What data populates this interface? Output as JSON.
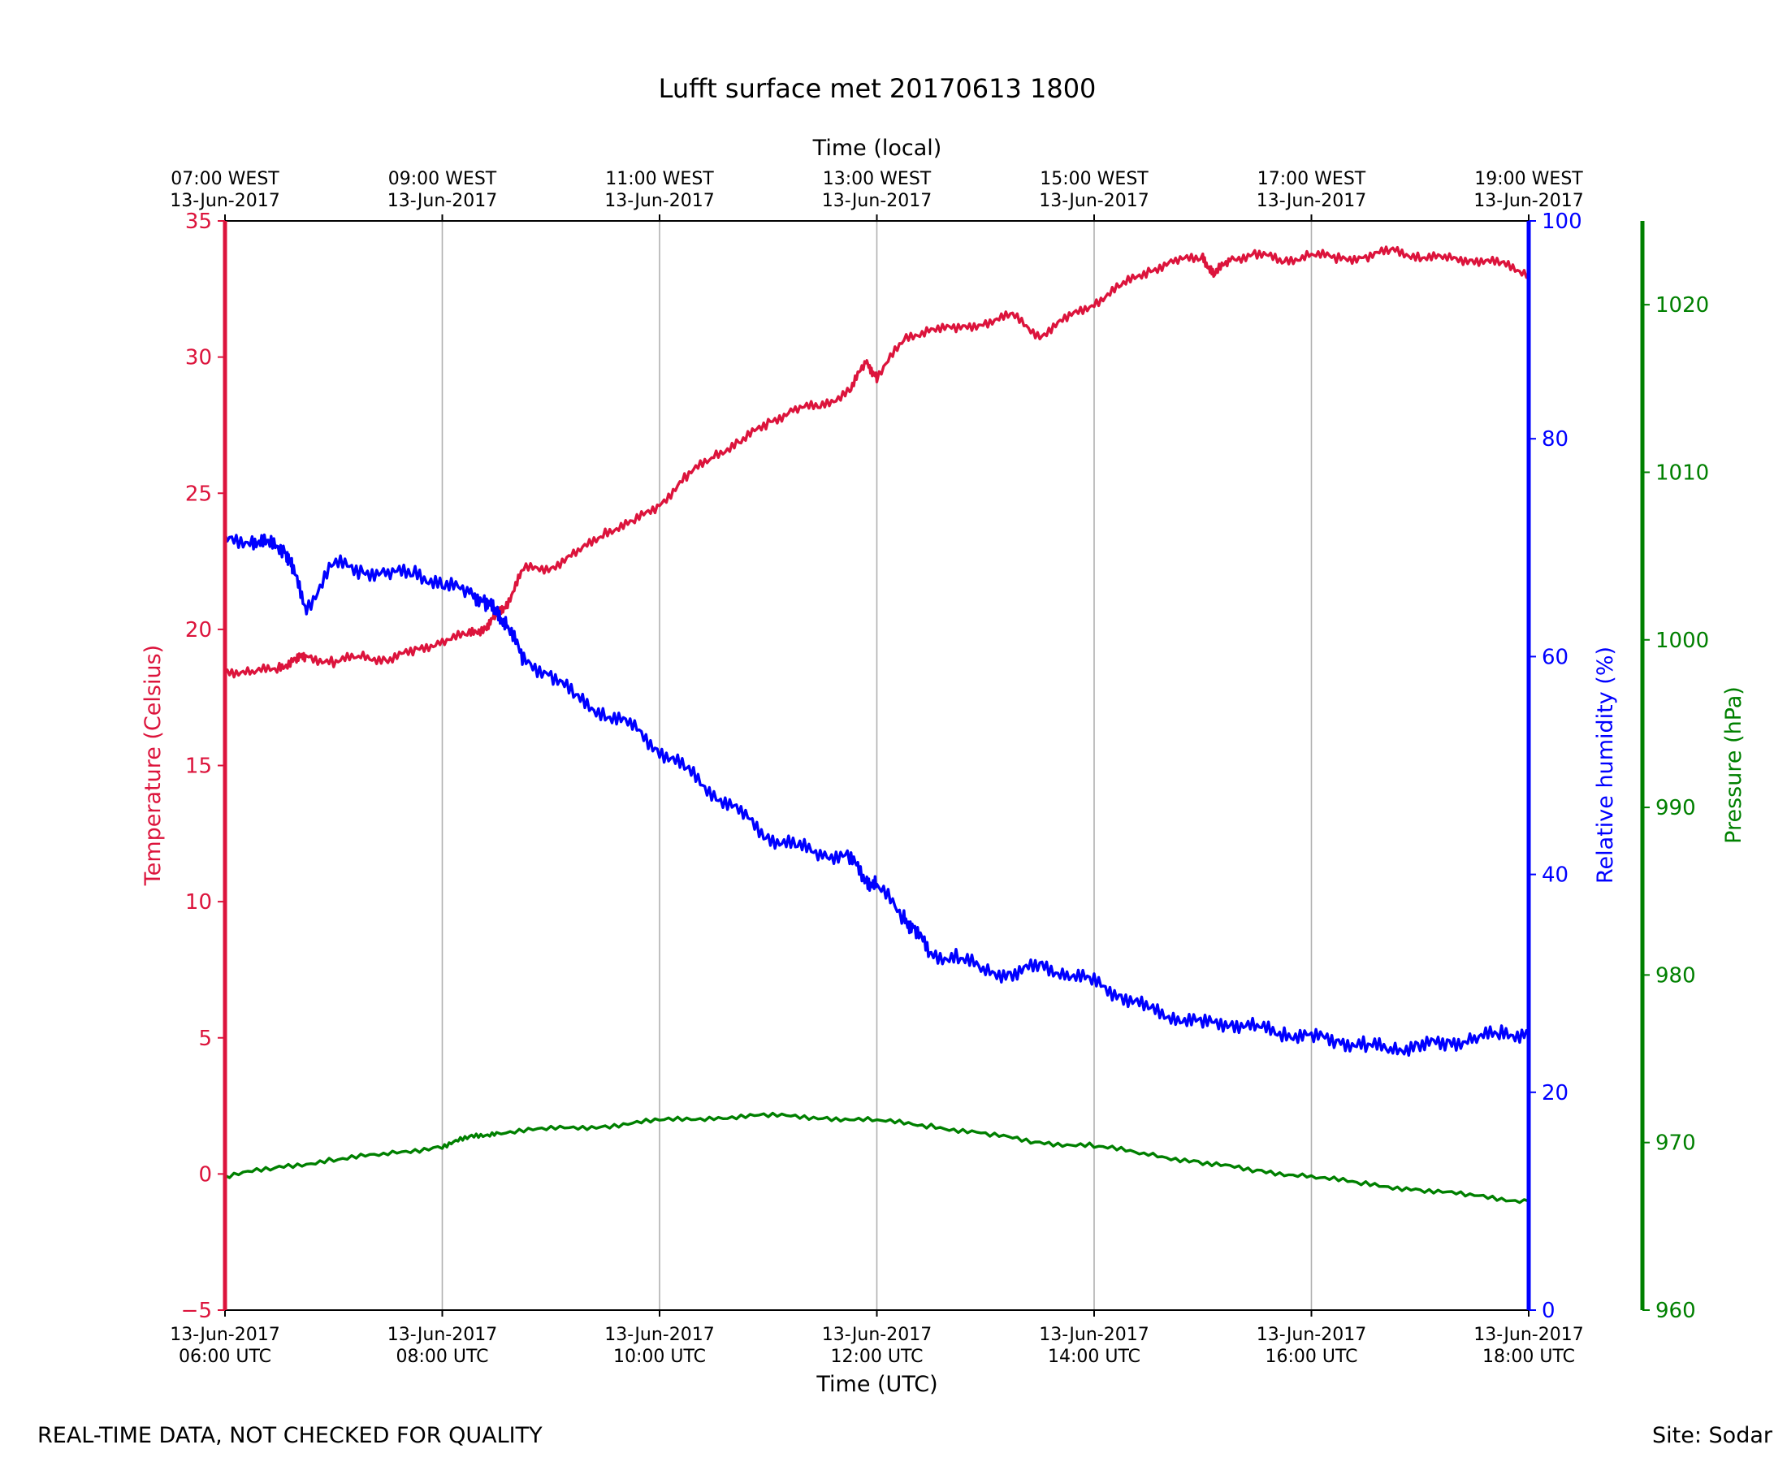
{
  "chart_data": {
    "type": "line",
    "title": "Lufft surface met 20170613 1800",
    "xlabel": "Time (UTC)",
    "xlabel_top": "Time (local)",
    "x_range_hours_utc": [
      6,
      18
    ],
    "x_ticks_bottom": [
      {
        "hour": 6,
        "line1": "13-Jun-2017",
        "line2": "06:00 UTC"
      },
      {
        "hour": 8,
        "line1": "13-Jun-2017",
        "line2": "08:00 UTC"
      },
      {
        "hour": 10,
        "line1": "13-Jun-2017",
        "line2": "10:00 UTC"
      },
      {
        "hour": 12,
        "line1": "13-Jun-2017",
        "line2": "12:00 UTC"
      },
      {
        "hour": 14,
        "line1": "13-Jun-2017",
        "line2": "14:00 UTC"
      },
      {
        "hour": 16,
        "line1": "13-Jun-2017",
        "line2": "16:00 UTC"
      },
      {
        "hour": 18,
        "line1": "13-Jun-2017",
        "line2": "18:00 UTC"
      }
    ],
    "x_ticks_top": [
      {
        "hour": 6,
        "line1": "07:00 WEST",
        "line2": "13-Jun-2017"
      },
      {
        "hour": 8,
        "line1": "09:00 WEST",
        "line2": "13-Jun-2017"
      },
      {
        "hour": 10,
        "line1": "11:00 WEST",
        "line2": "13-Jun-2017"
      },
      {
        "hour": 12,
        "line1": "13:00 WEST",
        "line2": "13-Jun-2017"
      },
      {
        "hour": 14,
        "line1": "15:00 WEST",
        "line2": "13-Jun-2017"
      },
      {
        "hour": 16,
        "line1": "17:00 WEST",
        "line2": "13-Jun-2017"
      },
      {
        "hour": 18,
        "line1": "19:00 WEST",
        "line2": "13-Jun-2017"
      }
    ],
    "grid": "vertical",
    "axes": {
      "temperature": {
        "label": "Temperature (Celsius)",
        "range": [
          -5,
          35
        ],
        "ticks": [
          -5,
          0,
          5,
          10,
          15,
          20,
          25,
          30,
          35
        ],
        "tick_labels": [
          "−5",
          "0",
          "5",
          "10",
          "15",
          "20",
          "25",
          "30",
          "35"
        ],
        "color": "#dc143c",
        "side": "left"
      },
      "humidity": {
        "label": "Relative humidity (%)",
        "range": [
          0,
          100
        ],
        "ticks": [
          0,
          20,
          40,
          60,
          80,
          100
        ],
        "tick_labels": [
          "0",
          "20",
          "40",
          "60",
          "80",
          "100"
        ],
        "color": "#0000ff",
        "side": "right"
      },
      "pressure": {
        "label": "Pressure (hPa)",
        "range": [
          960,
          1025
        ],
        "ticks": [
          960,
          970,
          980,
          990,
          1000,
          1010,
          1020
        ],
        "tick_labels": [
          "960",
          "970",
          "980",
          "990",
          "1000",
          "1010",
          "1020"
        ],
        "color": "#008000",
        "side": "right-offset"
      }
    },
    "series": [
      {
        "axis": "temperature",
        "color": "#dc143c",
        "x": [
          6.0,
          6.25,
          6.5,
          6.65,
          6.75,
          7.0,
          7.25,
          7.5,
          7.75,
          8.0,
          8.25,
          8.4,
          8.5,
          8.6,
          8.75,
          9.0,
          9.25,
          9.5,
          9.75,
          10.0,
          10.25,
          10.5,
          10.75,
          11.0,
          11.25,
          11.5,
          11.75,
          11.9,
          12.0,
          12.25,
          12.5,
          12.75,
          13.0,
          13.25,
          13.5,
          13.75,
          14.0,
          14.25,
          14.5,
          14.75,
          15.0,
          15.1,
          15.25,
          15.5,
          15.75,
          16.0,
          16.25,
          16.5,
          16.75,
          17.0,
          17.25,
          17.5,
          17.75,
          18.0
        ],
        "y": [
          18.5,
          18.4,
          18.6,
          18.9,
          19.0,
          18.8,
          19.0,
          18.9,
          19.2,
          19.6,
          19.8,
          20.1,
          20.5,
          21.0,
          22.2,
          22.3,
          22.8,
          23.6,
          23.9,
          24.6,
          25.6,
          26.4,
          26.9,
          27.6,
          28.1,
          28.2,
          28.8,
          29.8,
          29.3,
          30.6,
          31.1,
          31.0,
          31.3,
          31.5,
          30.8,
          31.4,
          32.0,
          32.6,
          33.2,
          33.5,
          33.7,
          33.0,
          33.6,
          33.8,
          33.5,
          33.8,
          33.6,
          33.7,
          33.9,
          33.7,
          33.6,
          33.6,
          33.4,
          33.1
        ]
      },
      {
        "axis": "humidity",
        "color": "#0000ff",
        "x": [
          6.0,
          6.25,
          6.4,
          6.55,
          6.62,
          6.75,
          7.0,
          7.25,
          7.5,
          7.75,
          8.0,
          8.25,
          8.4,
          8.5,
          8.6,
          8.75,
          9.0,
          9.25,
          9.5,
          9.75,
          10.0,
          10.25,
          10.5,
          10.75,
          11.0,
          11.25,
          11.5,
          11.75,
          11.9,
          12.0,
          12.25,
          12.35,
          12.5,
          12.75,
          13.0,
          13.25,
          13.5,
          13.75,
          14.0,
          14.25,
          14.5,
          14.75,
          15.0,
          15.25,
          15.5,
          15.75,
          16.0,
          16.25,
          16.5,
          16.75,
          17.0,
          17.25,
          17.5,
          17.75,
          18.0
        ],
        "y": [
          70.5,
          70.8,
          70.2,
          70.0,
          68.0,
          64.5,
          68.5,
          68.0,
          67.5,
          67.8,
          66.5,
          66.0,
          65.0,
          64.0,
          63.0,
          59.5,
          58.5,
          56.0,
          54.8,
          53.5,
          51.5,
          49.5,
          47.5,
          45.5,
          43.5,
          42.5,
          42.0,
          41.5,
          39.5,
          39.0,
          36.0,
          35.0,
          32.5,
          32.5,
          31.0,
          31.0,
          31.5,
          31.0,
          30.0,
          29.0,
          27.5,
          27.0,
          26.2,
          26.5,
          25.8,
          25.5,
          25.0,
          24.8,
          24.2,
          24.0,
          24.3,
          24.5,
          25.0,
          25.3,
          25.5
        ]
      },
      {
        "axis": "pressure",
        "color": "#008000",
        "x": [
          6.0,
          6.5,
          7.0,
          7.5,
          8.0,
          8.25,
          8.5,
          9.0,
          9.5,
          10.0,
          10.5,
          11.0,
          11.5,
          12.0,
          12.5,
          13.0,
          13.5,
          14.0,
          14.5,
          15.0,
          15.5,
          16.0,
          16.5,
          17.0,
          17.5,
          18.0
        ],
        "y": [
          968.0,
          968.5,
          969.0,
          969.3,
          969.8,
          970.3,
          970.6,
          970.8,
          971.0,
          971.3,
          971.5,
          971.6,
          971.5,
          971.3,
          971.0,
          970.5,
          970.0,
          969.8,
          969.3,
          968.8,
          968.3,
          968.0,
          967.5,
          967.2,
          966.8,
          966.5
        ]
      }
    ]
  },
  "footer": {
    "disclaimer": "REAL-TIME DATA, NOT CHECKED FOR QUALITY",
    "site": "Site: Sodar"
  }
}
